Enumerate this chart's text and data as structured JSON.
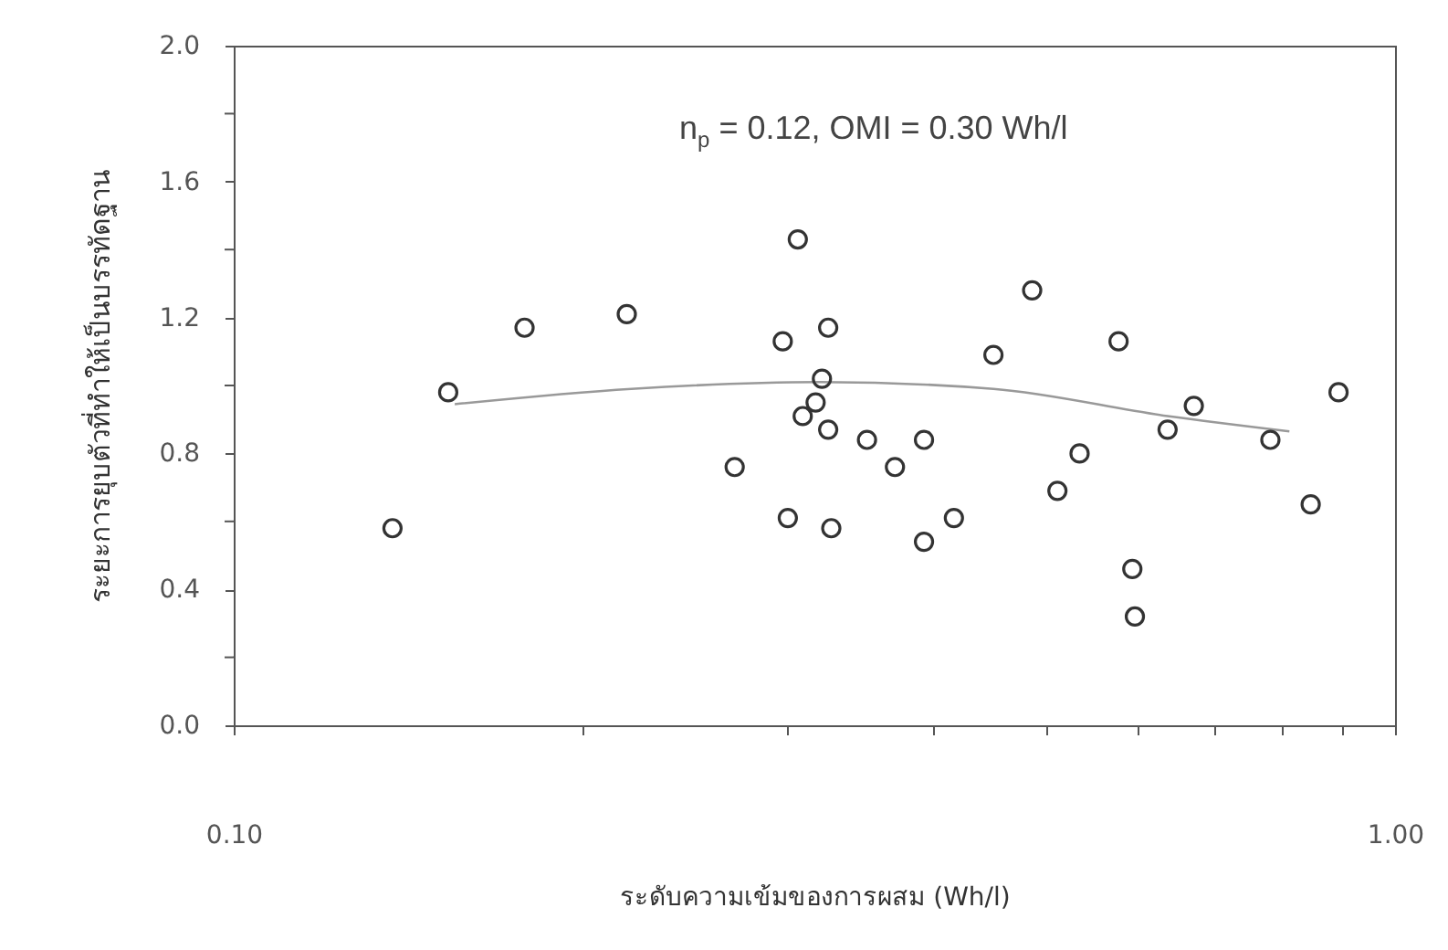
{
  "chart_data": {
    "type": "scatter",
    "xlabel": "ระดับความเข้มของการผสม (Wh/l)",
    "ylabel": "ระยะการยุบตัวที่ทำให้เป็นบรรทัดฐาน",
    "annotations": [
      "n$_{p}$ = 0.12, OMI = 0.30 Wh/l"
    ],
    "log": "x",
    "grid": false,
    "xlim": [
      0.1,
      1.0
    ],
    "xticks": [
      {
        "value": 0.1,
        "label": "0.10"
      },
      {
        "value": 0.2,
        "label": null
      },
      {
        "value": 0.3,
        "label": null
      },
      {
        "value": 0.4,
        "label": null
      },
      {
        "value": 0.5,
        "label": null
      },
      {
        "value": 0.6,
        "label": null
      },
      {
        "value": 0.7,
        "label": null
      },
      {
        "value": 0.8,
        "label": null
      },
      {
        "value": 0.9,
        "label": null
      },
      {
        "value": 1.0,
        "label": "1.00"
      }
    ],
    "ylim": [
      0,
      2.0
    ],
    "yticks": [
      {
        "value": 0,
        "label": "0.0"
      },
      {
        "value": 0.2,
        "label": null
      },
      {
        "value": 0.4,
        "label": "0.4"
      },
      {
        "value": 0.6,
        "label": null
      },
      {
        "value": 0.8,
        "label": "0.8"
      },
      {
        "value": 1.0,
        "label": null
      },
      {
        "value": 1.2,
        "label": "1.2"
      },
      {
        "value": 1.4,
        "label": null
      },
      {
        "value": 1.6,
        "label": "1.6"
      },
      {
        "value": 1.8,
        "label": null
      },
      {
        "value": 2.0,
        "label": "2.0"
      }
    ],
    "series": [
      {
        "type": "scatter",
        "marker": "circle",
        "color": "#333333",
        "x": [
          0.137,
          0.153,
          0.178,
          0.218,
          0.27,
          0.297,
          0.3,
          0.306,
          0.309,
          0.317,
          0.321,
          0.325,
          0.325,
          0.327,
          0.351,
          0.371,
          0.393,
          0.393,
          0.417,
          0.451,
          0.487,
          0.512,
          0.535,
          0.578,
          0.594,
          0.597,
          0.637,
          0.671,
          0.781,
          0.846,
          0.894
        ],
        "values": [
          0.58,
          0.98,
          1.17,
          1.21,
          0.76,
          1.13,
          0.61,
          1.43,
          0.91,
          0.95,
          1.02,
          1.17,
          0.87,
          0.58,
          0.84,
          0.76,
          0.84,
          0.54,
          0.61,
          1.09,
          1.28,
          0.69,
          0.8,
          1.13,
          0.46,
          0.32,
          0.87,
          0.94,
          0.84,
          0.65,
          0.98
        ]
      },
      {
        "type": "line",
        "marker": "none",
        "color": "#999999",
        "x": [
          0.155,
          0.22,
          0.32,
          0.451,
          0.637,
          0.811
        ],
        "values": [
          0.945,
          0.99,
          1.01,
          0.99,
          0.91,
          0.865
        ]
      }
    ]
  }
}
